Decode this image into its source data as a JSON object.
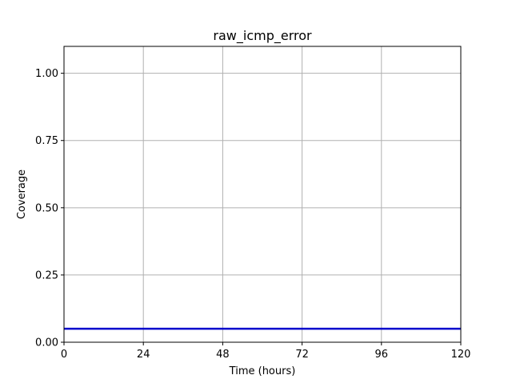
{
  "chart_data": {
    "type": "line",
    "title": "raw_icmp_error",
    "xlabel": "Time (hours)",
    "ylabel": "Coverage",
    "xlim": [
      0,
      120
    ],
    "ylim": [
      0,
      1.1
    ],
    "xticks": [
      0,
      24,
      48,
      72,
      96,
      120
    ],
    "xtick_labels": [
      "0",
      "24",
      "48",
      "72",
      "96",
      "120"
    ],
    "yticks": [
      0,
      0.25,
      0.5,
      0.75,
      1.0
    ],
    "ytick_labels": [
      "0.00",
      "0.25",
      "0.50",
      "0.75",
      "1.00"
    ],
    "grid": true,
    "legend": "none",
    "series": [
      {
        "color": "#0000cc",
        "x": [
          0,
          120
        ],
        "y": [
          0.05,
          0.05
        ]
      }
    ]
  }
}
